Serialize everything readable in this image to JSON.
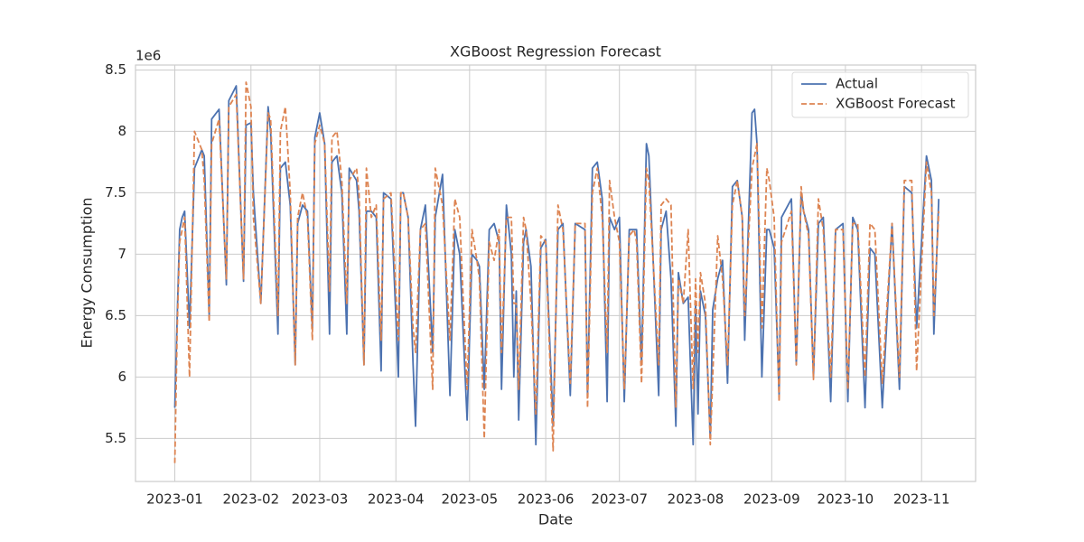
{
  "chart_data": {
    "type": "line",
    "title": "XGBoost Regression Forecast",
    "xlabel": "Date",
    "ylabel": "Energy Consumption",
    "y_offset_label": "1e6",
    "x": [
      1,
      2,
      3,
      4,
      5,
      7,
      9,
      12,
      13,
      15,
      16,
      19,
      22,
      23,
      26,
      29,
      30,
      32,
      33,
      36,
      39,
      40,
      43,
      44,
      46,
      48,
      50,
      51,
      53,
      55,
      57,
      58,
      60,
      62,
      64,
      65,
      67,
      69,
      71,
      72,
      75,
      76,
      78,
      79,
      81,
      83,
      85,
      86,
      89,
      92,
      93,
      94,
      96,
      98,
      99,
      101,
      103,
      106,
      107,
      110,
      113,
      115,
      117,
      120,
      122,
      124,
      125,
      127,
      129,
      131,
      133,
      134,
      136,
      138,
      139,
      140,
      141,
      143,
      144,
      146,
      148,
      150,
      152,
      155,
      157,
      159,
      162,
      164,
      168,
      169,
      171,
      173,
      175,
      177,
      178,
      180,
      182,
      184,
      186,
      188,
      189,
      191,
      193,
      194,
      198,
      199,
      201,
      203,
      205,
      206,
      208,
      210,
      212,
      213,
      214,
      215,
      217,
      219,
      220,
      222,
      224,
      226,
      228,
      230,
      232,
      233,
      236,
      237,
      238,
      240,
      242,
      243,
      245,
      247,
      248,
      252,
      254,
      256,
      257,
      259,
      261,
      263,
      265,
      268,
      270,
      273,
      275,
      277,
      279,
      282,
      284,
      286,
      289,
      293,
      296,
      298,
      301,
      303,
      307,
      309,
      310,
      312
    ],
    "series": [
      {
        "name": "Actual",
        "color": "#4c72b0",
        "dash": "solid",
        "values": [
          5.75,
          6.5,
          7.2,
          7.3,
          7.35,
          6.4,
          7.7,
          7.85,
          7.8,
          6.5,
          8.1,
          8.18,
          6.75,
          8.25,
          8.37,
          6.78,
          8.05,
          8.07,
          7.5,
          6.6,
          8.2,
          8.0,
          6.35,
          7.7,
          7.75,
          7.4,
          6.1,
          7.25,
          7.4,
          7.35,
          6.4,
          7.95,
          8.15,
          7.9,
          6.35,
          7.75,
          7.8,
          7.5,
          6.35,
          7.7,
          7.6,
          7.35,
          6.1,
          7.35,
          7.35,
          7.3,
          6.05,
          7.5,
          7.45,
          6.0,
          7.5,
          7.5,
          7.3,
          6.1,
          5.6,
          7.2,
          7.4,
          6.2,
          7.3,
          7.65,
          5.85,
          7.2,
          7.0,
          5.65,
          7.0,
          6.95,
          6.9,
          5.9,
          7.2,
          7.25,
          7.1,
          5.9,
          7.4,
          7.0,
          6.0,
          6.7,
          5.65,
          7.1,
          7.2,
          6.9,
          5.45,
          7.05,
          7.12,
          5.6,
          7.2,
          7.25,
          5.85,
          7.25,
          7.2,
          5.85,
          7.7,
          7.75,
          7.45,
          5.8,
          7.3,
          7.2,
          7.3,
          5.8,
          7.2,
          7.2,
          7.2,
          6.1,
          7.9,
          7.8,
          5.85,
          7.2,
          7.35,
          6.8,
          5.6,
          6.85,
          6.6,
          6.65,
          5.45,
          6.6,
          5.7,
          6.7,
          6.5,
          5.5,
          6.55,
          6.8,
          6.95,
          5.95,
          7.55,
          7.6,
          7.3,
          6.3,
          8.15,
          8.18,
          7.9,
          6.0,
          7.2,
          7.2,
          7.05,
          5.85,
          7.3,
          7.45,
          6.1,
          7.5,
          7.35,
          7.2,
          6.0,
          7.25,
          7.3,
          5.8,
          7.2,
          7.25,
          5.8,
          7.3,
          7.2,
          5.75,
          7.05,
          7.0,
          5.75,
          7.25,
          5.9,
          7.55,
          7.5,
          6.4,
          7.8,
          7.6,
          6.35,
          7.45
        ]
      },
      {
        "name": "XGBoost Forecast",
        "color": "#dd8452",
        "dash": "dashed",
        "values": [
          5.3,
          6.4,
          7.1,
          7.2,
          7.3,
          6.0,
          8.0,
          7.85,
          7.6,
          6.45,
          7.9,
          8.1,
          6.8,
          8.2,
          8.3,
          6.8,
          8.4,
          8.2,
          7.3,
          6.6,
          8.15,
          8.1,
          6.5,
          8.0,
          8.2,
          7.5,
          6.1,
          7.3,
          7.5,
          7.3,
          6.3,
          7.9,
          8.05,
          7.9,
          6.7,
          7.95,
          8.0,
          7.6,
          6.6,
          7.6,
          7.7,
          7.5,
          6.1,
          7.7,
          7.3,
          7.4,
          6.3,
          7.45,
          7.5,
          6.3,
          7.5,
          7.5,
          7.3,
          6.4,
          6.2,
          7.2,
          7.25,
          5.9,
          7.7,
          7.4,
          6.3,
          7.45,
          7.3,
          5.9,
          7.2,
          6.95,
          6.8,
          5.5,
          7.1,
          6.95,
          7.2,
          6.2,
          7.3,
          7.3,
          6.6,
          6.6,
          5.9,
          7.3,
          7.2,
          6.6,
          5.7,
          7.15,
          7.1,
          5.4,
          7.4,
          7.2,
          5.95,
          7.25,
          7.25,
          5.75,
          7.5,
          7.7,
          7.3,
          6.2,
          7.6,
          7.3,
          7.1,
          5.9,
          7.15,
          7.2,
          7.1,
          5.95,
          7.7,
          7.6,
          6.1,
          7.4,
          7.45,
          7.4,
          5.75,
          6.8,
          6.6,
          7.2,
          5.9,
          6.8,
          6.2,
          6.85,
          6.6,
          5.45,
          6.0,
          7.15,
          6.8,
          6.1,
          7.4,
          7.6,
          7.3,
          6.5,
          7.7,
          7.8,
          7.9,
          6.4,
          7.7,
          7.6,
          7.3,
          5.8,
          7.1,
          7.35,
          6.1,
          7.55,
          7.35,
          7.15,
          5.98,
          7.45,
          7.2,
          6.0,
          7.2,
          7.2,
          5.9,
          7.25,
          7.25,
          6.0,
          7.25,
          7.2,
          5.95,
          7.25,
          6.0,
          7.6,
          7.6,
          6.05,
          7.75,
          7.5,
          6.5,
          7.35
        ]
      }
    ],
    "xlim": [
      -15,
      327
    ],
    "xticks": [
      {
        "value": 1,
        "label": "2023-01"
      },
      {
        "value": 32,
        "label": "2023-02"
      },
      {
        "value": 60,
        "label": "2023-03"
      },
      {
        "value": 91,
        "label": "2023-04"
      },
      {
        "value": 121,
        "label": "2023-05"
      },
      {
        "value": 152,
        "label": "2023-06"
      },
      {
        "value": 182,
        "label": "2023-07"
      },
      {
        "value": 213,
        "label": "2023-08"
      },
      {
        "value": 244,
        "label": "2023-09"
      },
      {
        "value": 274,
        "label": "2023-10"
      },
      {
        "value": 305,
        "label": "2023-11"
      }
    ],
    "ylim": [
      5.15,
      8.54
    ],
    "yticks": [
      5.5,
      6.0,
      6.5,
      7.0,
      7.5,
      8.0,
      8.5
    ],
    "grid": true,
    "legend": "upper right"
  }
}
